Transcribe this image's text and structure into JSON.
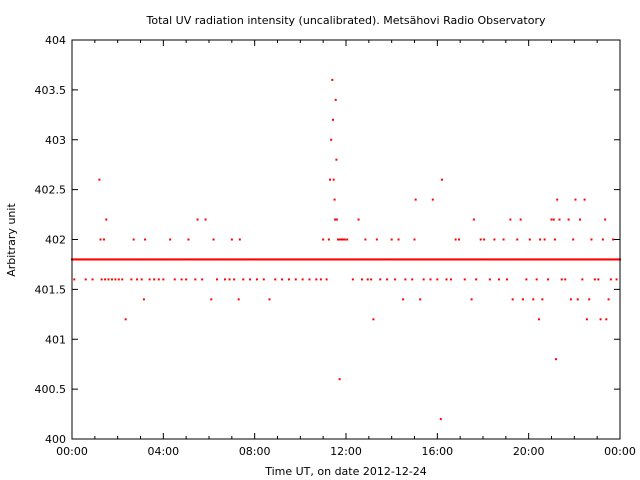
{
  "chart_data": {
    "type": "scatter",
    "title": "Total UV radiation intensity (uncalibrated). Metsähovi Radio Observatory",
    "xlabel": "Time UT, on date 2012-12-24",
    "ylabel": "Arbitrary unit",
    "x_unit": "hours UT",
    "xlim": [
      0,
      24
    ],
    "ylim": [
      400,
      404
    ],
    "x_ticks": [
      0,
      4,
      8,
      12,
      16,
      20,
      24
    ],
    "x_tick_labels": [
      "00:00",
      "04:00",
      "08:00",
      "12:00",
      "16:00",
      "20:00",
      "00:00"
    ],
    "y_ticks": [
      400,
      400.5,
      401,
      401.5,
      402,
      402.5,
      403,
      403.5,
      404
    ],
    "y_tick_labels": [
      "400",
      "400.5",
      "401",
      "401.5",
      "402",
      "402.5",
      "403",
      "403.5",
      "404"
    ],
    "grid": false,
    "marker_color": "#ff0000",
    "baseline": {
      "value": 401.8,
      "from": 0,
      "to": 24,
      "step": 0.04
    },
    "series": [
      {
        "points": [
          [
            0.1,
            401.6
          ],
          [
            0.6,
            401.6
          ],
          [
            0.9,
            401.6
          ],
          [
            1.2,
            402.6
          ],
          [
            1.25,
            402.0
          ],
          [
            1.4,
            402.0
          ],
          [
            1.5,
            402.2
          ],
          [
            1.3,
            401.6
          ],
          [
            1.45,
            401.6
          ],
          [
            1.6,
            401.6
          ],
          [
            1.75,
            401.6
          ],
          [
            1.9,
            401.6
          ],
          [
            2.05,
            401.6
          ],
          [
            2.2,
            401.6
          ],
          [
            2.35,
            401.2
          ],
          [
            2.6,
            401.6
          ],
          [
            2.7,
            402.0
          ],
          [
            2.85,
            401.6
          ],
          [
            3.05,
            401.6
          ],
          [
            3.15,
            401.4
          ],
          [
            3.2,
            402.0
          ],
          [
            3.4,
            401.6
          ],
          [
            3.6,
            401.6
          ],
          [
            3.8,
            401.6
          ],
          [
            4.0,
            401.6
          ],
          [
            4.3,
            402.0
          ],
          [
            4.5,
            401.6
          ],
          [
            4.8,
            401.6
          ],
          [
            5.0,
            401.6
          ],
          [
            5.1,
            402.0
          ],
          [
            5.4,
            401.6
          ],
          [
            5.5,
            402.2
          ],
          [
            5.7,
            401.6
          ],
          [
            5.85,
            402.2
          ],
          [
            6.1,
            401.4
          ],
          [
            6.2,
            402.0
          ],
          [
            6.35,
            401.6
          ],
          [
            6.7,
            401.6
          ],
          [
            6.9,
            401.6
          ],
          [
            7.0,
            402.0
          ],
          [
            7.1,
            401.6
          ],
          [
            7.3,
            401.4
          ],
          [
            7.35,
            402.0
          ],
          [
            7.5,
            401.6
          ],
          [
            7.8,
            401.6
          ],
          [
            8.1,
            401.6
          ],
          [
            8.4,
            401.6
          ],
          [
            8.65,
            401.4
          ],
          [
            8.9,
            401.6
          ],
          [
            9.2,
            401.6
          ],
          [
            9.5,
            401.6
          ],
          [
            9.8,
            401.6
          ],
          [
            10.1,
            401.6
          ],
          [
            10.4,
            401.6
          ],
          [
            10.7,
            401.6
          ],
          [
            10.9,
            401.6
          ],
          [
            11.0,
            402.0
          ],
          [
            11.15,
            401.6
          ],
          [
            11.25,
            402.0
          ],
          [
            11.3,
            402.6
          ],
          [
            11.35,
            403.0
          ],
          [
            11.4,
            403.6
          ],
          [
            11.43,
            403.2
          ],
          [
            11.46,
            402.6
          ],
          [
            11.5,
            402.4
          ],
          [
            11.52,
            402.2
          ],
          [
            11.55,
            403.4
          ],
          [
            11.58,
            402.8
          ],
          [
            11.6,
            402.2
          ],
          [
            11.65,
            402.0
          ],
          [
            11.7,
            402.0
          ],
          [
            11.75,
            402.0
          ],
          [
            11.8,
            402.0
          ],
          [
            11.85,
            402.0
          ],
          [
            11.9,
            402.0
          ],
          [
            11.95,
            402.0
          ],
          [
            12.05,
            402.0
          ],
          [
            11.72,
            400.6
          ],
          [
            12.3,
            401.6
          ],
          [
            12.55,
            402.2
          ],
          [
            12.7,
            401.6
          ],
          [
            12.85,
            402.0
          ],
          [
            12.95,
            401.6
          ],
          [
            13.1,
            401.6
          ],
          [
            13.2,
            401.2
          ],
          [
            13.35,
            402.0
          ],
          [
            13.5,
            401.6
          ],
          [
            13.8,
            401.6
          ],
          [
            14.0,
            402.0
          ],
          [
            14.15,
            401.6
          ],
          [
            14.3,
            402.0
          ],
          [
            14.5,
            401.4
          ],
          [
            14.6,
            401.6
          ],
          [
            14.9,
            401.6
          ],
          [
            15.0,
            402.0
          ],
          [
            15.05,
            402.4
          ],
          [
            15.25,
            401.4
          ],
          [
            15.4,
            401.6
          ],
          [
            15.7,
            401.6
          ],
          [
            15.8,
            402.4
          ],
          [
            16.0,
            401.6
          ],
          [
            16.15,
            400.2
          ],
          [
            16.2,
            402.6
          ],
          [
            16.4,
            401.6
          ],
          [
            16.6,
            401.6
          ],
          [
            16.8,
            402.0
          ],
          [
            16.95,
            402.0
          ],
          [
            17.2,
            401.6
          ],
          [
            17.5,
            401.4
          ],
          [
            17.6,
            402.2
          ],
          [
            17.7,
            401.6
          ],
          [
            17.9,
            402.0
          ],
          [
            18.05,
            402.0
          ],
          [
            18.3,
            401.6
          ],
          [
            18.5,
            402.0
          ],
          [
            18.7,
            401.6
          ],
          [
            18.9,
            402.0
          ],
          [
            19.05,
            401.6
          ],
          [
            19.2,
            402.2
          ],
          [
            19.3,
            401.4
          ],
          [
            19.5,
            402.0
          ],
          [
            19.65,
            402.2
          ],
          [
            19.75,
            401.4
          ],
          [
            19.9,
            401.6
          ],
          [
            20.05,
            402.0
          ],
          [
            20.2,
            401.4
          ],
          [
            20.35,
            401.6
          ],
          [
            20.45,
            401.2
          ],
          [
            20.5,
            402.0
          ],
          [
            20.6,
            401.4
          ],
          [
            20.7,
            402.0
          ],
          [
            20.85,
            401.6
          ],
          [
            21.0,
            402.2
          ],
          [
            21.1,
            402.2
          ],
          [
            21.15,
            402.0
          ],
          [
            21.2,
            400.8
          ],
          [
            21.25,
            402.4
          ],
          [
            21.35,
            402.2
          ],
          [
            21.45,
            401.6
          ],
          [
            21.6,
            401.6
          ],
          [
            21.75,
            402.2
          ],
          [
            21.85,
            401.4
          ],
          [
            21.95,
            402.0
          ],
          [
            22.05,
            402.4
          ],
          [
            22.15,
            401.4
          ],
          [
            22.25,
            402.2
          ],
          [
            22.35,
            401.6
          ],
          [
            22.45,
            402.4
          ],
          [
            22.55,
            401.2
          ],
          [
            22.65,
            401.4
          ],
          [
            22.75,
            402.0
          ],
          [
            22.9,
            401.6
          ],
          [
            23.05,
            401.6
          ],
          [
            23.15,
            401.2
          ],
          [
            23.25,
            402.0
          ],
          [
            23.35,
            402.2
          ],
          [
            23.4,
            401.2
          ],
          [
            23.5,
            401.4
          ],
          [
            23.6,
            401.6
          ],
          [
            23.7,
            402.0
          ],
          [
            23.85,
            401.6
          ]
        ]
      }
    ]
  }
}
